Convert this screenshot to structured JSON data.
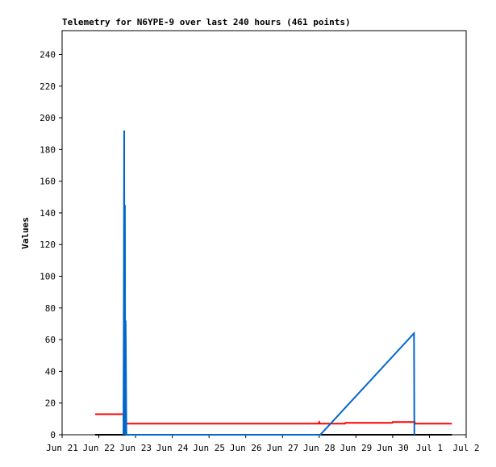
{
  "chart_data": {
    "type": "line",
    "title": "Telemetry for N6YPE-9 over last 240 hours (461 points)",
    "y_label": "Values",
    "ylim": [
      0,
      255
    ],
    "yticks": [
      0,
      20,
      40,
      60,
      80,
      100,
      120,
      140,
      160,
      180,
      200,
      220,
      240
    ],
    "xlim": [
      0,
      11
    ],
    "xticks": [
      {
        "value": 0,
        "label": "Jun 21"
      },
      {
        "value": 1,
        "label": "Jun 22"
      },
      {
        "value": 2,
        "label": "Jun 23"
      },
      {
        "value": 3,
        "label": "Jun 24"
      },
      {
        "value": 4,
        "label": "Jun 25"
      },
      {
        "value": 5,
        "label": "Jun 26"
      },
      {
        "value": 6,
        "label": "Jun 27"
      },
      {
        "value": 7,
        "label": "Jun 28"
      },
      {
        "value": 8,
        "label": "Jun 29"
      },
      {
        "value": 9,
        "label": "Jun 30"
      },
      {
        "value": 10,
        "label": "Jul 1"
      },
      {
        "value": 11,
        "label": "Jul 2"
      }
    ],
    "series": [
      {
        "color": "#000000",
        "x": [
          0.9,
          10.61
        ],
        "values": [
          0,
          0
        ]
      },
      {
        "color": "#ff0000",
        "x": [
          0.9,
          1.67,
          1.68,
          6.98,
          7.0,
          7.02,
          7.04,
          7.7,
          7.71,
          8.99,
          9.0,
          9.6,
          9.61,
          10.61
        ],
        "values": [
          13,
          13,
          7,
          7,
          8,
          7,
          7,
          7,
          7.5,
          7.5,
          8,
          8,
          7,
          7
        ]
      },
      {
        "color": "#0066cc",
        "x": [
          1.67,
          1.68,
          1.69,
          1.7,
          1.71,
          1.72,
          1.73,
          1.75,
          7.03,
          9.58,
          9.59
        ],
        "values": [
          0,
          80,
          192,
          0,
          145,
          0,
          72,
          0,
          0,
          64,
          0
        ]
      }
    ]
  }
}
